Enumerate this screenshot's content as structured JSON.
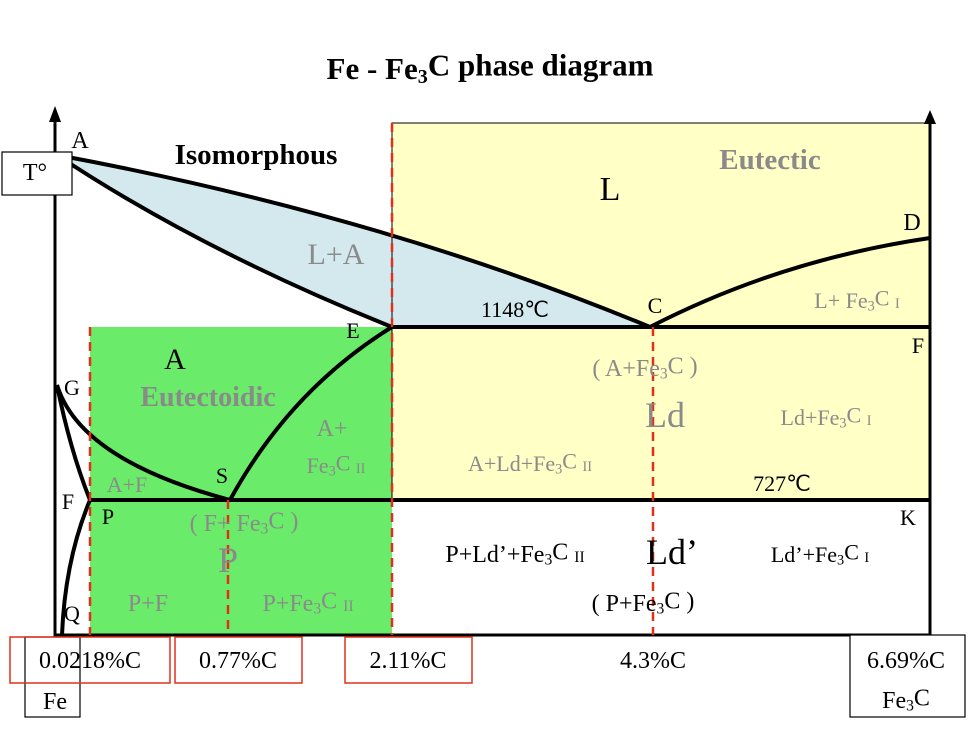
{
  "labels": {
    "title": [
      "Fe - Fe",
      "3",
      "C phase diagram"
    ],
    "temperature_axis": [
      "T°"
    ],
    "point_A": [
      "A"
    ],
    "isomorphous": [
      "Isomorphous"
    ],
    "liquid": [
      "L"
    ],
    "eutectic": [
      "Eutectic"
    ],
    "point_D": [
      "D"
    ],
    "liquid_austenite": [
      "L+A"
    ],
    "temp_eutectic": [
      "1148℃"
    ],
    "point_C": [
      "C"
    ],
    "liquid_cementite": [
      "L+ Fe",
      "3",
      "C ",
      "I"
    ],
    "point_E": [
      "E"
    ],
    "point_F_right": [
      "F"
    ],
    "austenite": [
      "A"
    ],
    "point_G": [
      "G"
    ],
    "eutectoidic": [
      "Eutectoidic"
    ],
    "ledeburite_composition": [
      "( A+Fe",
      "3",
      "C )"
    ],
    "ledeburite": [
      "Ld"
    ],
    "ledeburite_cementite": [
      "Ld+Fe",
      "3",
      "C ",
      "I"
    ],
    "austenite_plus": [
      "A+"
    ],
    "secondary_cementite": [
      "Fe",
      "3",
      "C ",
      "II"
    ],
    "austenite_ledeburite": [
      "A+Ld+Fe",
      "3",
      "C ",
      "II"
    ],
    "temp_eutectoid": [
      "727℃"
    ],
    "austenite_ferrite": [
      "A+F"
    ],
    "point_S": [
      "S"
    ],
    "point_F_left": [
      "F"
    ],
    "point_P": [
      "P"
    ],
    "point_K": [
      "K"
    ],
    "pearlite_composition": [
      "( F+ Fe",
      "3",
      "C )"
    ],
    "pearlite": [
      "P"
    ],
    "pearlite_ledeburite": [
      "P+Ld’+Fe",
      "3",
      "C ",
      "II"
    ],
    "transformed_ledeburite": [
      "Ld’"
    ],
    "transformed_ledeburite_cementite": [
      "Ld’+Fe",
      "3",
      "C ",
      "I"
    ],
    "transformed_composition": [
      "( P+Fe",
      "3",
      "C )"
    ],
    "pearlite_ferrite": [
      "P+F"
    ],
    "pearlite_cementite": [
      "P+Fe",
      "3",
      "C ",
      "II"
    ],
    "point_Q": [
      "Q"
    ]
  },
  "axis": {
    "carbon_0218": [
      "0.0218%C"
    ],
    "carbon_077": [
      "0.77%C"
    ],
    "carbon_211": [
      "2.11%C"
    ],
    "carbon_43": [
      "4.3%C"
    ],
    "carbon_669": [
      "6.69%C"
    ],
    "iron": [
      "Fe"
    ],
    "cementite": [
      "Fe",
      "3",
      "C"
    ]
  }
}
